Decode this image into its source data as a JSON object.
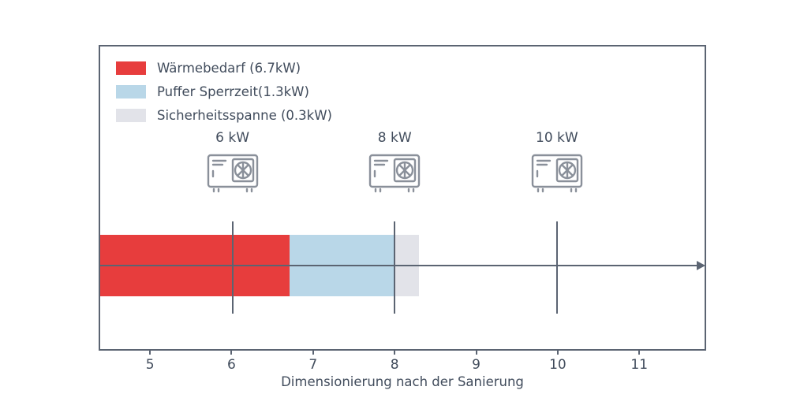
{
  "chart_data": {
    "type": "bar",
    "orientation": "horizontal-stacked",
    "title": "",
    "xlabel": "Dimensionierung nach der Sanierung",
    "ylabel": "",
    "xlim": [
      4.37,
      11.82
    ],
    "xticks": [
      5,
      6,
      7,
      8,
      9,
      10,
      11
    ],
    "grid": false,
    "legend_position": "upper left",
    "bar_start": 4.37,
    "segments": [
      {
        "name": "Wärmebedarf (6.7kW)",
        "value_kw": 6.7,
        "end": 6.7,
        "color": "#e73d3d"
      },
      {
        "name": "Puffer Sperrzeit(1.3kW)",
        "value_kw": 1.3,
        "end": 8.0,
        "color": "#b9d7e8"
      },
      {
        "name": "Sicherheitsspanne (0.3kW)",
        "value_kw": 0.3,
        "end": 8.3,
        "color": "#e2e3e9"
      }
    ],
    "markers": [
      {
        "x": 6,
        "label": "6 kW",
        "icon": "heat-pump-icon"
      },
      {
        "x": 8,
        "label": "8 kW",
        "icon": "heat-pump-icon"
      },
      {
        "x": 10,
        "label": "10 kW",
        "icon": "heat-pump-icon"
      }
    ]
  },
  "legend": {
    "items": [
      {
        "label": "Wärmebedarf (6.7kW)"
      },
      {
        "label": "Puffer Sperrzeit(1.3kW)"
      },
      {
        "label": "Sicherheitsspanne (0.3kW)"
      }
    ]
  },
  "colors": {
    "frame": "#5b6472",
    "text": "#414c5c",
    "icon_stroke": "#8a909a",
    "background": "#ffffff"
  }
}
